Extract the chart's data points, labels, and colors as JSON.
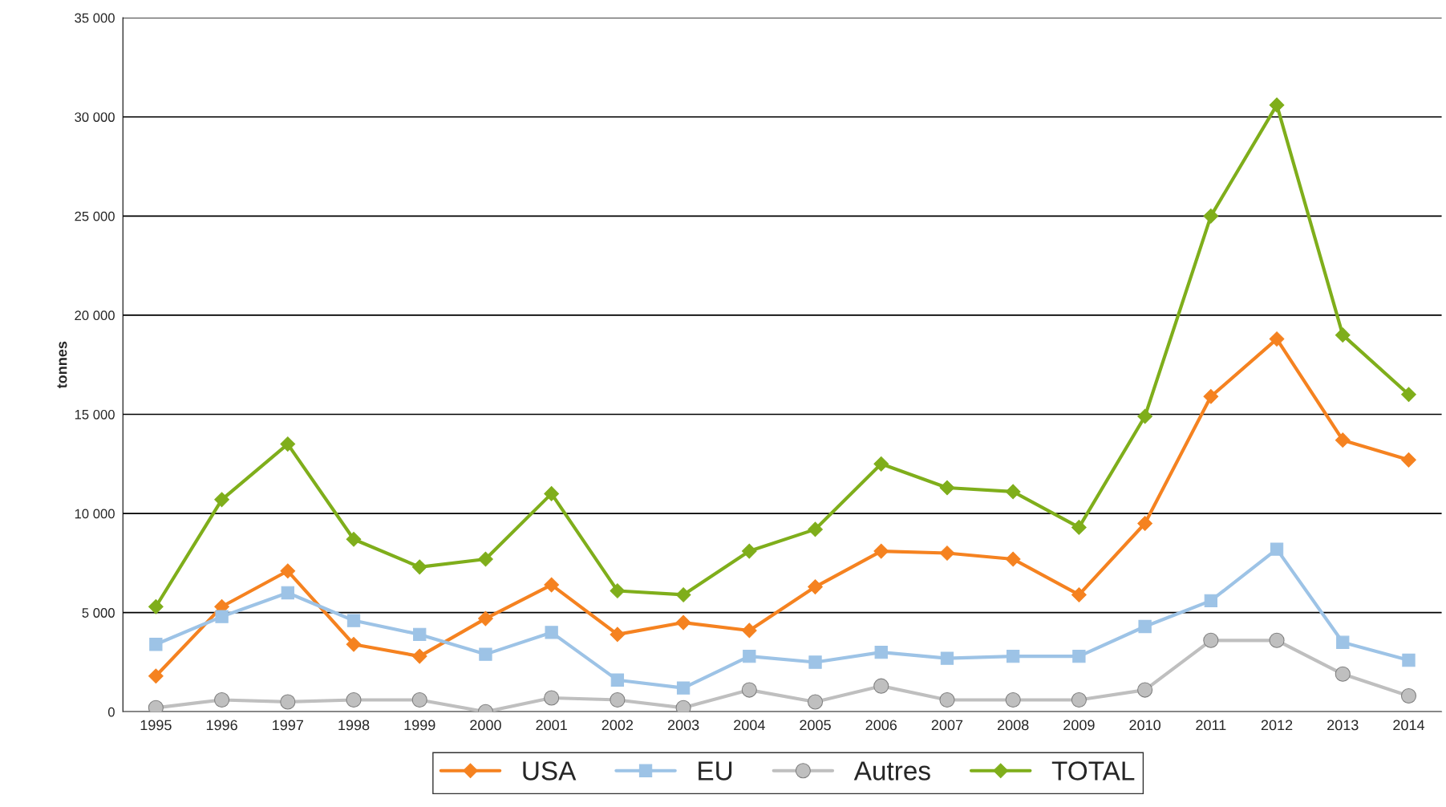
{
  "chart_data": {
    "type": "line",
    "ylabel": "tonnes",
    "categories": [
      "1995",
      "1996",
      "1997",
      "1998",
      "1999",
      "2000",
      "2001",
      "2002",
      "2003",
      "2004",
      "2005",
      "2006",
      "2007",
      "2008",
      "2009",
      "2010",
      "2011",
      "2012",
      "2013",
      "2014"
    ],
    "series": [
      {
        "name": "USA",
        "color": "#f58220",
        "marker": "diamond",
        "values": [
          1800,
          5300,
          7100,
          3400,
          2800,
          4700,
          6400,
          3900,
          4500,
          4100,
          6300,
          8100,
          8000,
          7700,
          5900,
          9500,
          15900,
          18800,
          13700,
          12700
        ]
      },
      {
        "name": "EU",
        "color": "#9dc3e6",
        "marker": "square",
        "values": [
          3400,
          4800,
          6000,
          4600,
          3900,
          2900,
          4000,
          1600,
          1200,
          2800,
          2500,
          3000,
          2700,
          2800,
          2800,
          4300,
          5600,
          8200,
          3500,
          2600
        ]
      },
      {
        "name": "Autres",
        "color": "#bfbfbf",
        "marker": "circle",
        "values": [
          200,
          600,
          500,
          600,
          600,
          0,
          700,
          600,
          200,
          1100,
          500,
          1300,
          600,
          600,
          600,
          1100,
          3600,
          3600,
          1900,
          800
        ]
      },
      {
        "name": "TOTAL",
        "color": "#7fae1b",
        "marker": "diamond",
        "values": [
          5300,
          10700,
          13500,
          8700,
          7300,
          7700,
          11000,
          6100,
          5900,
          8100,
          9200,
          12500,
          11300,
          11100,
          9300,
          14900,
          25000,
          30600,
          19000,
          16000
        ]
      }
    ],
    "ylim": [
      0,
      35000
    ],
    "yticks": [
      {
        "value": 0,
        "label": "0"
      },
      {
        "value": 5000,
        "label": "5 000"
      },
      {
        "value": 10000,
        "label": "10 000"
      },
      {
        "value": 15000,
        "label": "15 000"
      },
      {
        "value": 20000,
        "label": "20 000"
      },
      {
        "value": 25000,
        "label": "25 000"
      },
      {
        "value": 30000,
        "label": "30 000"
      },
      {
        "value": 35000,
        "label": "35 000"
      }
    ],
    "grid": "y",
    "legend": "bottom",
    "line_style": "solid"
  }
}
